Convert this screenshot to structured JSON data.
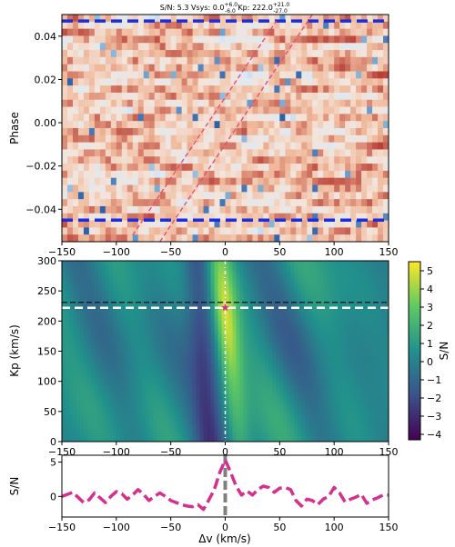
{
  "chart_data": [
    {
      "type": "heatmap",
      "panel": "phase-vs-velocity",
      "title": {
        "prefix": "S/N: 5.3 Vsys: ",
        "vsys_value": "0.0",
        "vsys_upper": "+6.0",
        "vsys_lower": "-6.0",
        "kp_prefix": " Kp: ",
        "kp_value": "222.0",
        "kp_upper": "+21.0",
        "kp_lower": "-27.0"
      },
      "ylabel": "Phase",
      "xlim": [
        -150,
        150
      ],
      "ylim": [
        -0.055,
        0.05
      ],
      "x_ticks": [
        "−150",
        "−100",
        "−50",
        "0",
        "50",
        "100",
        "150"
      ],
      "x_tick_values": [
        -150,
        -100,
        -50,
        0,
        50,
        100,
        150
      ],
      "y_ticks": [
        "0.04",
        "0.02",
        "0.00",
        "−0.02",
        "−0.04"
      ],
      "y_tick_values": [
        0.04,
        0.02,
        0.0,
        -0.02,
        -0.04
      ],
      "transit_limits": [
        0.047,
        -0.045
      ],
      "trail_lines": [
        {
          "x0": -85,
          "y0": -0.052,
          "x1": 47,
          "y1": 0.047
        },
        {
          "x0": -60,
          "y0": -0.055,
          "x1": 80,
          "y1": 0.05
        }
      ],
      "colormap": [
        "#2a5fa8",
        "#7fb0d8",
        "#dce9f5",
        "#f4e4da",
        "#f0b89a",
        "#b2312c"
      ]
    },
    {
      "type": "heatmap",
      "panel": "kp-vs-vsys",
      "ylabel": "Kp (km/s)",
      "xlim": [
        -150,
        150
      ],
      "ylim": [
        0,
        300
      ],
      "x_ticks": [
        "−150",
        "−100",
        "−50",
        "0",
        "50",
        "100",
        "150"
      ],
      "x_tick_values": [
        -150,
        -100,
        -50,
        0,
        50,
        100,
        150
      ],
      "y_ticks": [
        "0",
        "50",
        "100",
        "150",
        "200",
        "250",
        "300"
      ],
      "y_tick_values": [
        0,
        50,
        100,
        150,
        200,
        250,
        300
      ],
      "peak": {
        "vsys": 0,
        "kp": 222
      },
      "expected_kp": 231,
      "colorbar": {
        "label": "S/N",
        "range": [
          -4.3,
          5.5
        ],
        "ticks": [
          "5",
          "4",
          "3",
          "2",
          "1",
          "0",
          "−1",
          "−2",
          "−3",
          "−4"
        ],
        "tick_values": [
          5,
          4,
          3,
          2,
          1,
          0,
          -1,
          -2,
          -3,
          -4
        ],
        "colors": [
          "#440154",
          "#3b528b",
          "#21918c",
          "#5ec962",
          "#fde725"
        ]
      }
    },
    {
      "type": "line",
      "panel": "sn-profile",
      "xlabel": "Δv (km/s)",
      "ylabel": "S/N",
      "xlim": [
        -150,
        150
      ],
      "ylim": [
        -3,
        6
      ],
      "x_ticks": [
        "−150",
        "−100",
        "−50",
        "0",
        "50",
        "100",
        "150"
      ],
      "x_tick_values": [
        -150,
        -100,
        -50,
        0,
        50,
        100,
        150
      ],
      "y_ticks": [
        "5",
        "0"
      ],
      "y_tick_values": [
        5,
        0
      ],
      "series": [
        {
          "color": "#d6308f",
          "style": "dashed",
          "x": [
            -150,
            -140,
            -130,
            -125,
            -120,
            -115,
            -110,
            -105,
            -100,
            -95,
            -90,
            -85,
            -80,
            -75,
            -70,
            -65,
            -60,
            -55,
            -50,
            -45,
            -40,
            -35,
            -30,
            -25,
            -20,
            -15,
            -10,
            -5,
            0,
            5,
            10,
            15,
            20,
            25,
            30,
            35,
            40,
            45,
            50,
            55,
            60,
            65,
            70,
            75,
            80,
            85,
            90,
            95,
            100,
            105,
            110,
            115,
            120,
            125,
            130,
            135,
            140,
            145,
            150
          ],
          "y": [
            0.0,
            0.6,
            -0.9,
            -0.5,
            0.5,
            -0.2,
            -0.9,
            0.0,
            0.7,
            0.4,
            -0.4,
            0.2,
            1.0,
            0.3,
            -0.6,
            0.0,
            0.5,
            0.0,
            -0.6,
            -0.9,
            -1.2,
            -1.4,
            -1.5,
            -1.2,
            -1.9,
            -0.5,
            1.0,
            3.5,
            5.3,
            3.5,
            1.5,
            0.2,
            0.8,
            0.2,
            1.0,
            1.5,
            1.3,
            0.6,
            1.2,
            1.3,
            1.0,
            -0.6,
            -1.4,
            -0.4,
            -0.6,
            -1.2,
            -0.4,
            0.0,
            1.3,
            0.5,
            -0.8,
            -0.4,
            -0.1,
            0.3,
            -1.0,
            -0.5,
            -0.2,
            0.2,
            0.2
          ]
        }
      ],
      "vline": {
        "x": 0,
        "color": "#808080"
      }
    }
  ]
}
